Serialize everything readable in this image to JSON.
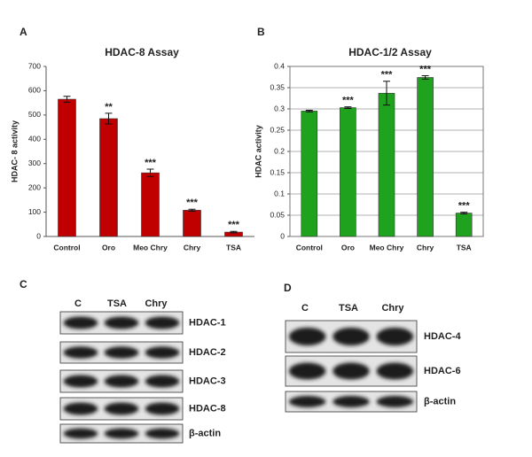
{
  "chart_data": [
    {
      "type": "bar",
      "panel": "A",
      "title": "HDAC-8 Assay",
      "y_label": "HDAC- 8 activity",
      "categories": [
        "Control",
        "Oro",
        "Meo Chry",
        "Chry",
        "TSA"
      ],
      "values": [
        565,
        485,
        262,
        108,
        18
      ],
      "errors": [
        12,
        22,
        15,
        4,
        3
      ],
      "annotations": [
        null,
        "**",
        "***",
        "***",
        "***"
      ],
      "color": "#c00000",
      "ylim": [
        0,
        700
      ],
      "yticks": [
        0,
        100,
        200,
        300,
        400,
        500,
        600,
        700
      ],
      "grid": false
    },
    {
      "type": "bar",
      "panel": "B",
      "title": "HDAC-1/2 Assay",
      "y_label": "HDAC activity",
      "categories": [
        "Control",
        "Oro",
        "Meo Chry",
        "Chry",
        "TSA"
      ],
      "values": [
        0.295,
        0.303,
        0.337,
        0.374,
        0.055
      ],
      "errors": [
        0.002,
        0.002,
        0.028,
        0.004,
        0.002
      ],
      "annotations": [
        null,
        "***",
        "***",
        "***",
        "***"
      ],
      "color": "#1fa31f",
      "ylim": [
        0,
        0.4
      ],
      "yticks": [
        0,
        0.05,
        0.1,
        0.15,
        0.2,
        0.25,
        0.3,
        0.35,
        0.4
      ],
      "grid": true
    }
  ],
  "blots": [
    {
      "panel": "C",
      "lanes": [
        "C",
        "TSA",
        "Chry"
      ],
      "rows": [
        "HDAC-1",
        "HDAC-2",
        "HDAC-3",
        "HDAC-8",
        "β-actin"
      ]
    },
    {
      "panel": "D",
      "lanes": [
        "C",
        "TSA",
        "Chry"
      ],
      "rows": [
        "HDAC-4",
        "HDAC-6",
        "β-actin"
      ]
    }
  ]
}
